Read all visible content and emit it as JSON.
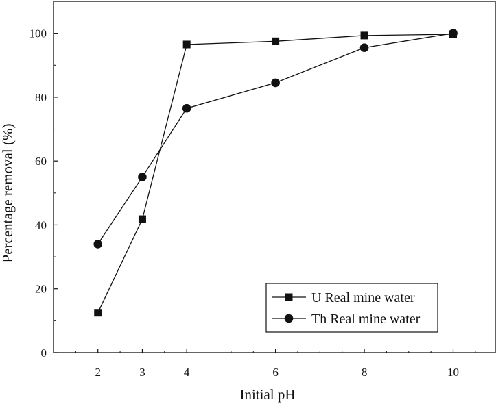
{
  "chart_data": {
    "type": "line",
    "xlabel": "Initial pH",
    "ylabel": "Percentage removal (%)",
    "xlim": [
      1.0,
      10.95
    ],
    "ylim": [
      0,
      110
    ],
    "x_ticks": [
      "2",
      "3",
      "4",
      "6",
      "8",
      "10"
    ],
    "y_ticks": [
      "0",
      "20",
      "40",
      "60",
      "80",
      "100"
    ],
    "x": [
      2,
      3,
      4,
      6,
      8,
      10
    ],
    "series": [
      {
        "name": "U Real mine water",
        "marker": "square",
        "values": [
          12.5,
          41.8,
          96.5,
          97.5,
          99.3,
          99.7
        ]
      },
      {
        "name": "Th Real mine water",
        "marker": "circle",
        "values": [
          34.0,
          55.0,
          76.5,
          84.5,
          95.5,
          100.0
        ]
      }
    ],
    "legend_position": "bottom-right",
    "grid": false
  }
}
